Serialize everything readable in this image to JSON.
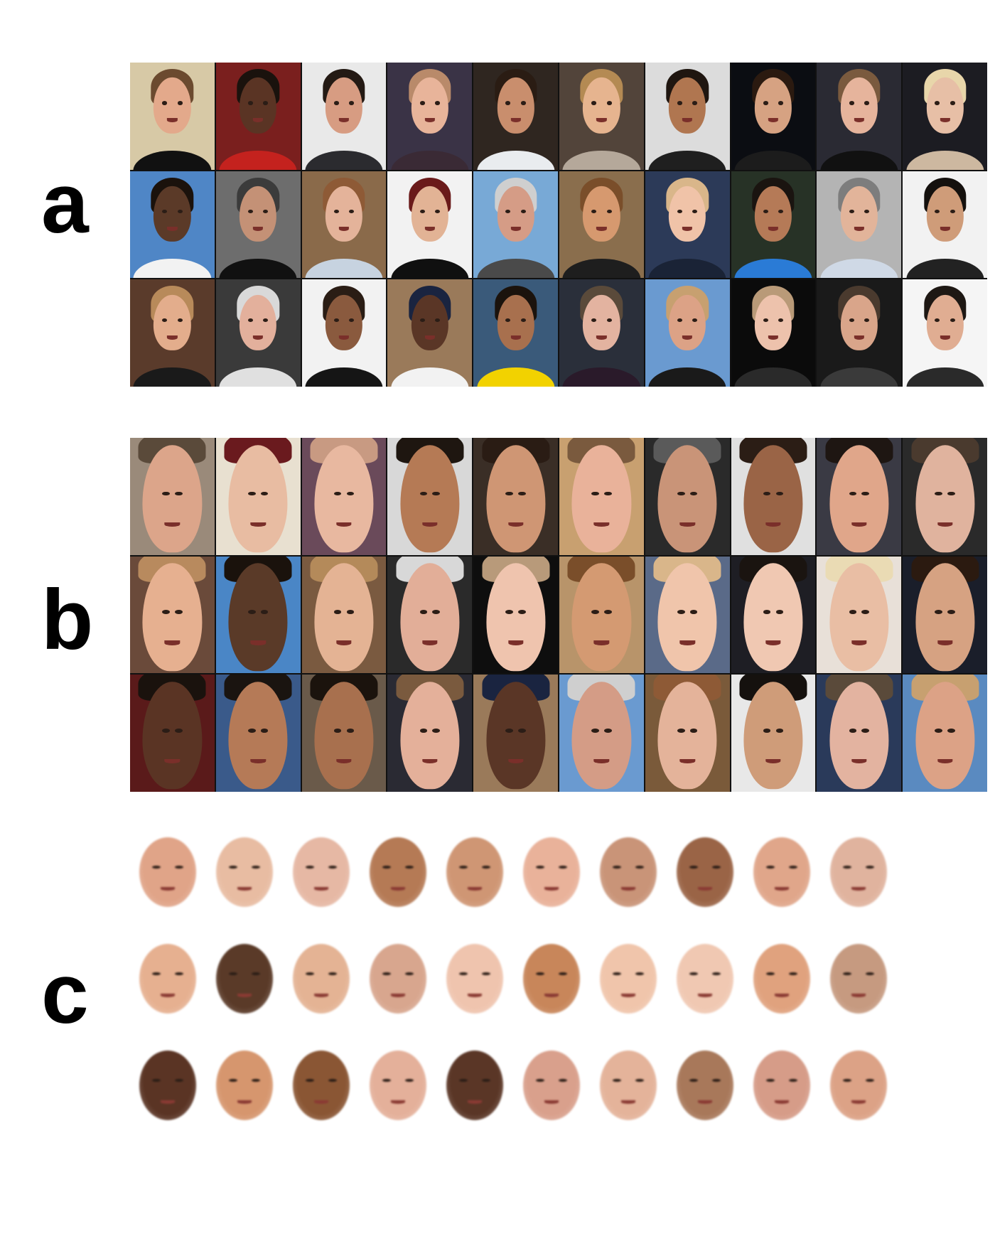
{
  "labels": {
    "a": "a",
    "b": "b",
    "c": "c"
  },
  "panel_a": {
    "rows": [
      [
        {
          "bg": "#d7c9a6",
          "skin": "#e3a98b",
          "hair": "#6b4a2f",
          "cloth": "#111111"
        },
        {
          "bg": "#7a1f1e",
          "skin": "#5a3424",
          "hair": "#1a120d",
          "cloth": "#c4221e"
        },
        {
          "bg": "#e9e9e9",
          "skin": "#d79c82",
          "hair": "#241a14",
          "cloth": "#2b2b2f"
        },
        {
          "bg": "#3a3346",
          "skin": "#e8b49a",
          "hair": "#b98a6a",
          "cloth": "#3a2a35"
        },
        {
          "bg": "#2f2620",
          "skin": "#c98e6d",
          "hair": "#2a1c13",
          "cloth": "#e9ecef"
        },
        {
          "bg": "#52443a",
          "skin": "#e6b48f",
          "hair": "#b48a53",
          "cloth": "#b5a89a"
        },
        {
          "bg": "#dcdcdc",
          "skin": "#b07650",
          "hair": "#1f1610",
          "cloth": "#1f1f1f"
        },
        {
          "bg": "#0b0d12",
          "skin": "#d6a282",
          "hair": "#2b1a10",
          "cloth": "#1c1c1c"
        },
        {
          "bg": "#2a2a33",
          "skin": "#e6b49c",
          "hair": "#7a5a3e",
          "cloth": "#111111"
        },
        {
          "bg": "#1c1c22",
          "skin": "#e7bfa6",
          "hair": "#e8d6aa",
          "cloth": "#cdb8a0"
        }
      ],
      [
        {
          "bg": "#4f86c6",
          "skin": "#5b3a28",
          "hair": "#1b120c",
          "cloth": "#f2f2f2"
        },
        {
          "bg": "#6d6d6d",
          "skin": "#c49176",
          "hair": "#3b3b3b",
          "cloth": "#111111"
        },
        {
          "bg": "#8a6a4a",
          "skin": "#e4b39a",
          "hair": "#8e5a36",
          "cloth": "#c7d3e0"
        },
        {
          "bg": "#f2f2f2",
          "skin": "#e2b395",
          "hair": "#6a1a1a",
          "cloth": "#101010"
        },
        {
          "bg": "#78a9d6",
          "skin": "#d59c86",
          "hair": "#cfcfcf",
          "cloth": "#4a4a4a"
        },
        {
          "bg": "#8a6e4d",
          "skin": "#d6996f",
          "hair": "#7a4e2a",
          "cloth": "#1e1e1e"
        },
        {
          "bg": "#2c3a58",
          "skin": "#f0c3a8",
          "hair": "#d9b68a",
          "cloth": "#1a2336"
        },
        {
          "bg": "#273226",
          "skin": "#b57a57",
          "hair": "#1a1410",
          "cloth": "#2a7bd6"
        },
        {
          "bg": "#b4b4b4",
          "skin": "#e2b49a",
          "hair": "#7d7d7d",
          "cloth": "#cfd9e6"
        },
        {
          "bg": "#f2f2f2",
          "skin": "#cf9c79",
          "hair": "#15110e",
          "cloth": "#222222"
        }
      ],
      [
        {
          "bg": "#5a3b2b",
          "skin": "#e3ad8c",
          "hair": "#b88a5a",
          "cloth": "#1a1a1a"
        },
        {
          "bg": "#3a3a3a",
          "skin": "#e3b09c",
          "hair": "#d9d9d9",
          "cloth": "#e0e0e0"
        },
        {
          "bg": "#f2f2f2",
          "skin": "#8a5a3e",
          "hair": "#2a1d15",
          "cloth": "#151515"
        },
        {
          "bg": "#9a7a5a",
          "skin": "#5a3626",
          "hair": "#1a2440",
          "cloth": "#f2f2f2"
        },
        {
          "bg": "#3a5a7a",
          "skin": "#a8704e",
          "hair": "#1b130d",
          "cloth": "#f2d200"
        },
        {
          "bg": "#2a2f3a",
          "skin": "#e3b3a0",
          "hair": "#5a4a3a",
          "cloth": "#2a1a2a"
        },
        {
          "bg": "#6a9ad0",
          "skin": "#dca286",
          "hair": "#c7a070",
          "cloth": "#1a1a1a"
        },
        {
          "bg": "#0b0b0b",
          "skin": "#edc2ac",
          "hair": "#b99a78",
          "cloth": "#2a2a2a"
        },
        {
          "bg": "#1a1a1a",
          "skin": "#d9a58a",
          "hair": "#4a3a2e",
          "cloth": "#3a3a3a"
        },
        {
          "bg": "#f5f5f5",
          "skin": "#e0ad92",
          "hair": "#1e1814",
          "cloth": "#2a2a2a"
        }
      ]
    ]
  },
  "panel_b": {
    "rows": [
      [
        {
          "bg": "#9a8a7a",
          "skin": "#dca58a",
          "hair": "#5a4a3a"
        },
        {
          "bg": "#e8e0d0",
          "skin": "#e8bca2",
          "hair": "#6a1a1e"
        },
        {
          "bg": "#6a4a5a",
          "skin": "#e8b8a0",
          "hair": "#c89a82"
        },
        {
          "bg": "#d8d8d8",
          "skin": "#b57a55",
          "hair": "#1e1610"
        },
        {
          "bg": "#3a2e26",
          "skin": "#cf9674",
          "hair": "#2a1c14"
        },
        {
          "bg": "#c8a070",
          "skin": "#e9b29a",
          "hair": "#7a5a3e"
        },
        {
          "bg": "#2a2a2a",
          "skin": "#c99478",
          "hair": "#5a5a5a"
        },
        {
          "bg": "#e0e0e0",
          "skin": "#9a6446",
          "hair": "#2b1d15"
        },
        {
          "bg": "#3a3a44",
          "skin": "#e0a68a",
          "hair": "#1e1612"
        },
        {
          "bg": "#2a2a2a",
          "skin": "#e0b39e",
          "hair": "#4a3a2e"
        }
      ],
      [
        {
          "bg": "#6a4a3a",
          "skin": "#e6b090",
          "hair": "#b88a5e"
        },
        {
          "bg": "#4a86c6",
          "skin": "#5a3a28",
          "hair": "#1a120c"
        },
        {
          "bg": "#7a5a40",
          "skin": "#e4b394",
          "hair": "#b48a5a"
        },
        {
          "bg": "#2a2a2a",
          "skin": "#e2ae98",
          "hair": "#d8d8d8"
        },
        {
          "bg": "#0e0e0e",
          "skin": "#efc4ae",
          "hair": "#b89a7a"
        },
        {
          "bg": "#b8946a",
          "skin": "#d49a72",
          "hair": "#7a4e2a"
        },
        {
          "bg": "#5a6a88",
          "skin": "#f0c5ab",
          "hair": "#d9b68a"
        },
        {
          "bg": "#1e1e24",
          "skin": "#f0c8b2",
          "hair": "#1a1410"
        },
        {
          "bg": "#e8e0d8",
          "skin": "#e9bea4",
          "hair": "#eadbb4"
        },
        {
          "bg": "#1a1e2a",
          "skin": "#d6a282",
          "hair": "#2b1a10"
        }
      ],
      [
        {
          "bg": "#5a1a1a",
          "skin": "#5a3424",
          "hair": "#1a120d"
        },
        {
          "bg": "#3a5a8a",
          "skin": "#b57a57",
          "hair": "#1a1410"
        },
        {
          "bg": "#6a5a4a",
          "skin": "#a8704e",
          "hair": "#1b130d"
        },
        {
          "bg": "#2a2a33",
          "skin": "#e4b09a",
          "hair": "#7a5a3e"
        },
        {
          "bg": "#9a7a5a",
          "skin": "#5a3626",
          "hair": "#1a2440"
        },
        {
          "bg": "#6a9ad0",
          "skin": "#d49c86",
          "hair": "#cfcfcf"
        },
        {
          "bg": "#7a5a3a",
          "skin": "#e4b39a",
          "hair": "#8e5a36"
        },
        {
          "bg": "#e8e8e8",
          "skin": "#cf9c79",
          "hair": "#15110e"
        },
        {
          "bg": "#2a3a5a",
          "skin": "#e3b3a0",
          "hair": "#5a4a3a"
        },
        {
          "bg": "#5a8ac0",
          "skin": "#dca286",
          "hair": "#c7a070"
        }
      ]
    ]
  },
  "panel_c": {
    "rows": [
      [
        "#e0a488",
        "#e8bca2",
        "#e6b8a4",
        "#b57a55",
        "#cf9674",
        "#e9b29a",
        "#c99478",
        "#9a6446",
        "#e0a68a",
        "#e0b39e"
      ],
      [
        "#e6b090",
        "#5a3a28",
        "#e4b394",
        "#d8a68e",
        "#efc4ae",
        "#c8865a",
        "#f0c5ab",
        "#f0c8b2",
        "#e0a27e",
        "#c69a80"
      ],
      [
        "#5a3424",
        "#d6966e",
        "#8a5634",
        "#e4b09a",
        "#5a3626",
        "#d9a08c",
        "#e4b39a",
        "#a8785a",
        "#d69c88",
        "#dca286"
      ]
    ]
  }
}
